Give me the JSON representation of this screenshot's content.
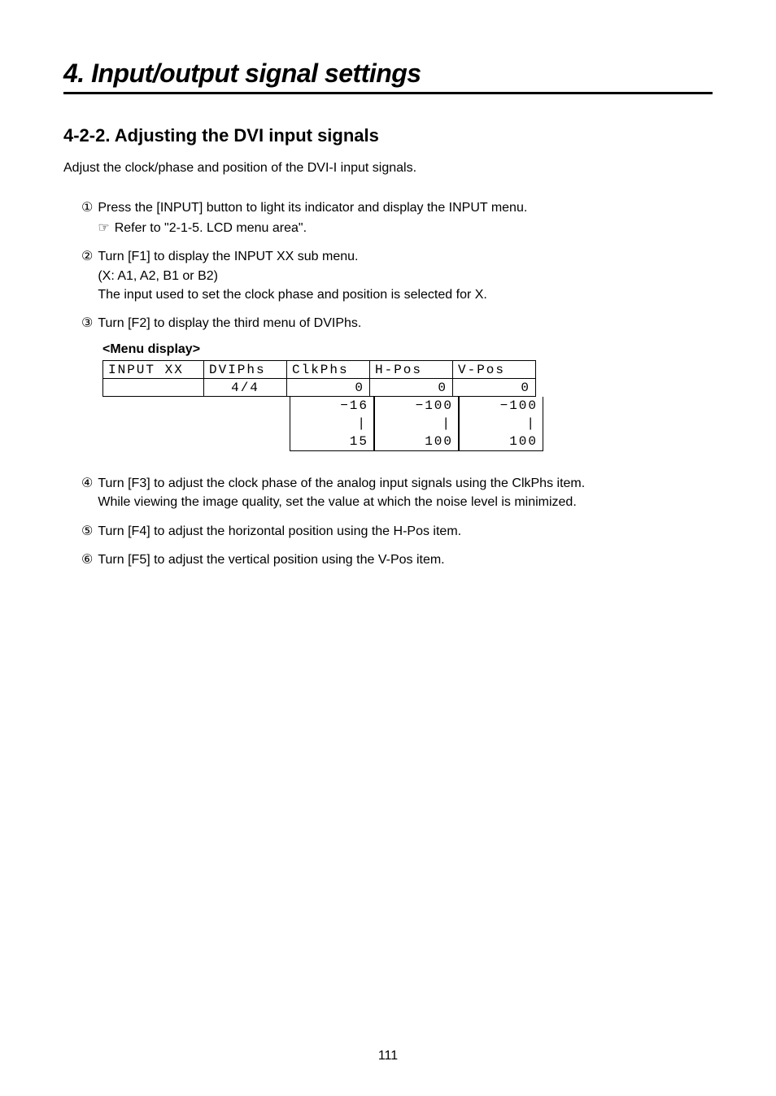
{
  "chapter_title": "4. Input/output signal settings",
  "section_title": "4-2-2.  Adjusting the DVI input signals",
  "intro": "Adjust the clock/phase and position of the DVI-I input signals.",
  "steps_before": [
    {
      "num": "①",
      "text": "Press the [INPUT] button to light its indicator and display the INPUT menu.",
      "sub": "Refer to \"2-1-5. LCD menu area\"."
    },
    {
      "num": "②",
      "text": "Turn [F1] to display the INPUT XX sub menu.",
      "line2": "(X: A1, A2, B1 or B2)",
      "line3": "The input used to set the clock phase and position is selected for X."
    },
    {
      "num": "③",
      "text": "Turn [F2] to display the third menu of DVIPhs."
    }
  ],
  "menu_display_label": "<Menu display>",
  "lcd": {
    "header": {
      "c1": "INPUT XX",
      "c2": "DVIPhs",
      "c3": "ClkPhs",
      "c4": "H-Pos",
      "c5": "V-Pos"
    },
    "values": {
      "c1": "",
      "c2": "4/4",
      "c3": "0",
      "c4": "0",
      "c5": "0"
    },
    "ranges": {
      "c3_min": "−16",
      "c3_max": "15",
      "c4_min": "−100",
      "c4_max": "100",
      "c5_min": "−100",
      "c5_max": "100",
      "pipe": "|"
    }
  },
  "steps_after": [
    {
      "num": "④",
      "text": "Turn [F3] to adjust the clock phase of the analog input signals using the ClkPhs item.",
      "line2": "While viewing the image quality, set the value at which the noise level is minimized."
    },
    {
      "num": "⑤",
      "text": "Turn [F4] to adjust the horizontal position using the H-Pos item."
    },
    {
      "num": "⑥",
      "text": "Turn [F5] to adjust the vertical position using the V-Pos item."
    }
  ],
  "page_number": "111",
  "pointer_glyph": "☞"
}
